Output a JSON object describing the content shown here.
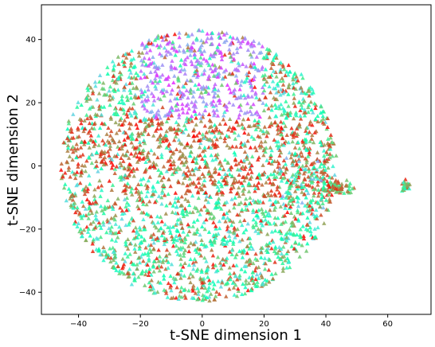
{
  "chart_data": {
    "type": "scatter",
    "title": "",
    "xlabel": "t-SNE dimension 1",
    "ylabel": "t-SNE dimension 2",
    "xlim": [
      -52,
      74
    ],
    "ylim": [
      -47,
      51
    ],
    "xticks": [
      -40,
      -20,
      0,
      20,
      40,
      60
    ],
    "yticks": [
      -40,
      -20,
      0,
      20,
      40
    ],
    "marker": "triangle",
    "colormap": "rainbow",
    "grid": false,
    "legend": "none",
    "point_count_approx": 3000,
    "distribution": {
      "main_cluster_center": [
        -1,
        0
      ],
      "main_cluster_radius": 43,
      "blue_purple_region": {
        "x": [
          -20,
          20
        ],
        "y": [
          15,
          45
        ]
      },
      "red_orange_band": {
        "x": [
          -30,
          40
        ],
        "y": [
          -10,
          15
        ]
      },
      "secondary_cluster_center": [
        44,
        -7
      ],
      "tail_cluster_center": [
        66,
        -6.5
      ]
    }
  }
}
